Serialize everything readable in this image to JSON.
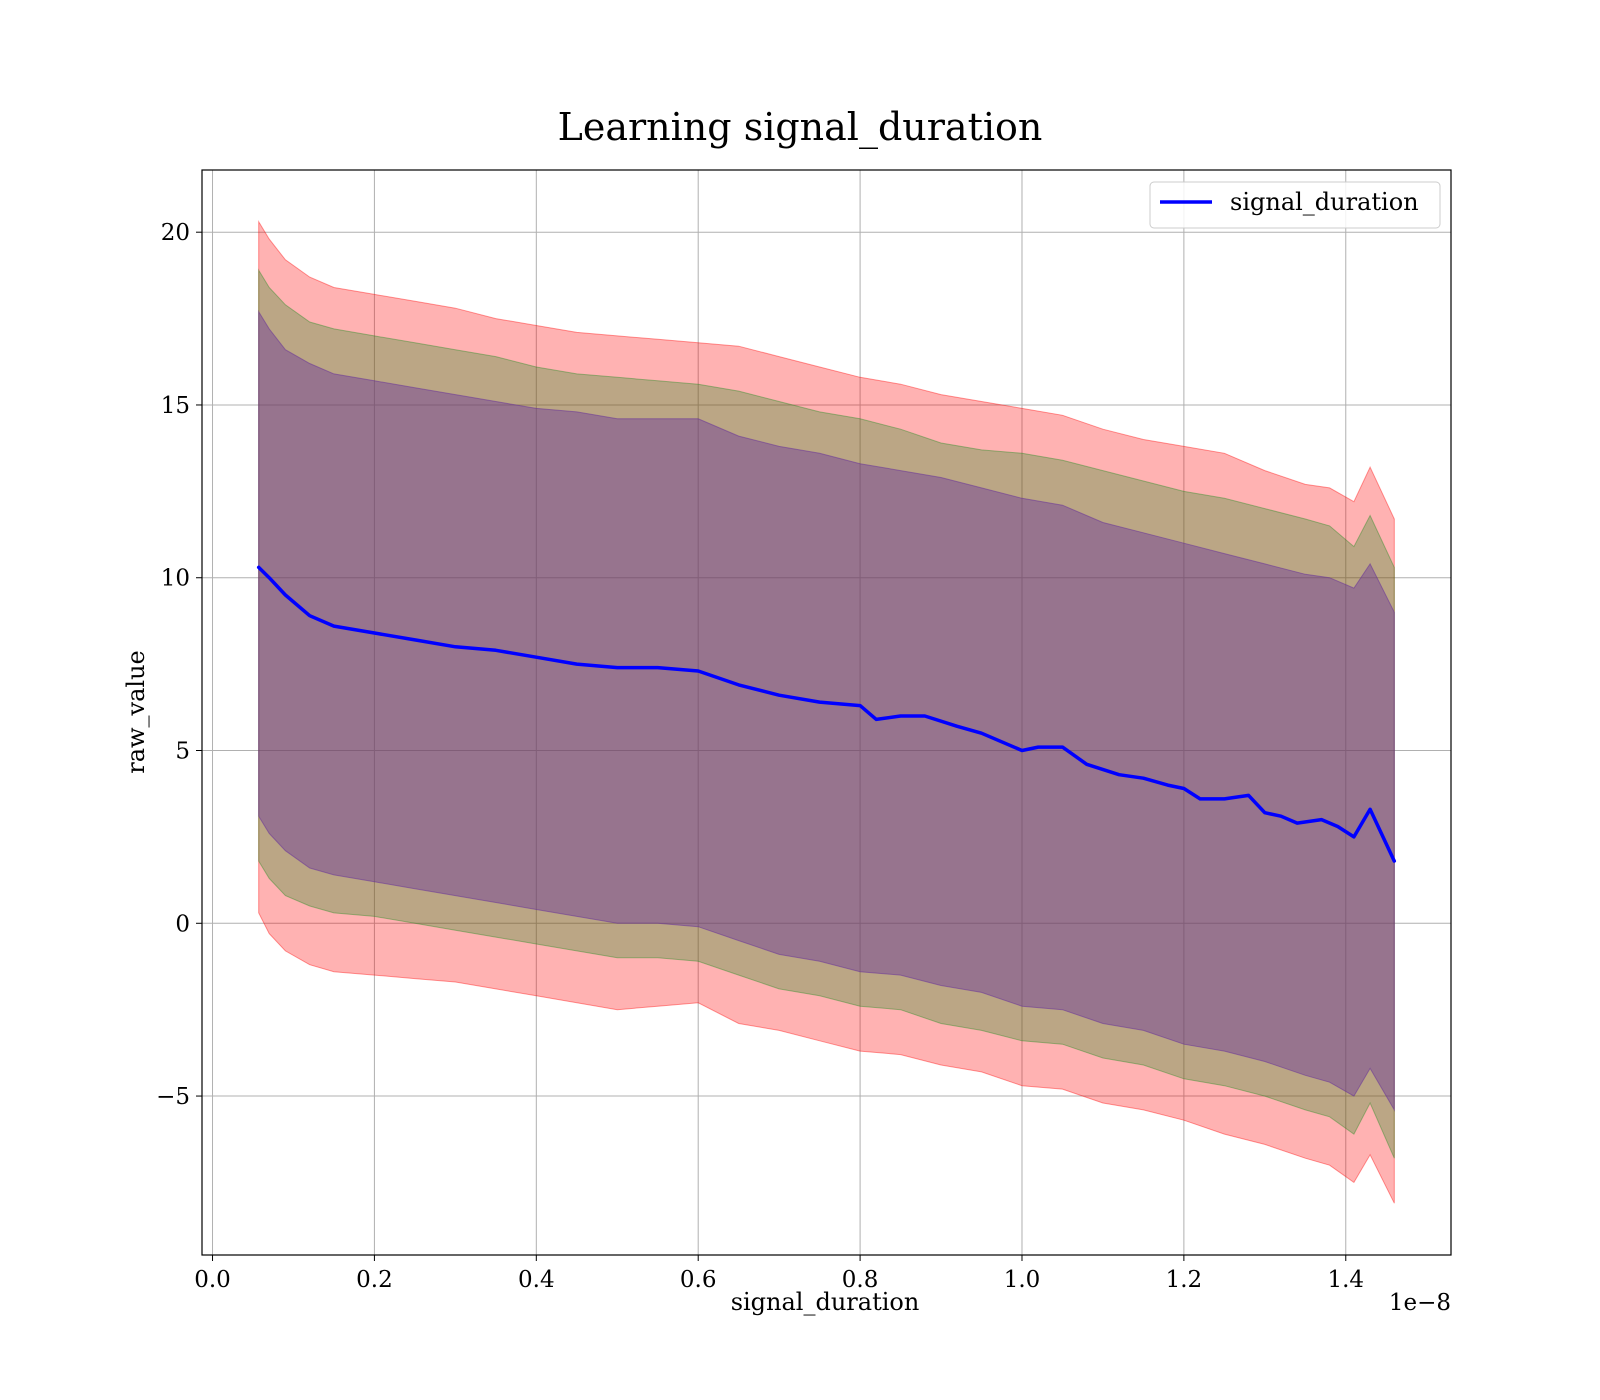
{
  "chart_data": {
    "type": "line",
    "title": "Learning signal_duration",
    "xlabel": "signal_duration",
    "ylabel": "raw_value",
    "x_offset_label": "1e−8",
    "xlim": [
      -0.013,
      1.53
    ],
    "ylim": [
      -9.6,
      21.8
    ],
    "x_ticks": [
      0.0,
      0.2,
      0.4,
      0.6,
      0.8,
      1.0,
      1.2,
      1.4
    ],
    "x_tick_labels": [
      "0.0",
      "0.2",
      "0.4",
      "0.6",
      "0.8",
      "1.0",
      "1.2",
      "1.4"
    ],
    "y_ticks": [
      -5,
      0,
      5,
      10,
      15,
      20
    ],
    "y_tick_labels": [
      "−5",
      "0",
      "5",
      "10",
      "15",
      "20"
    ],
    "grid": true,
    "legend_position": "top-right",
    "series": [
      {
        "name": "signal_duration",
        "color": "#0000ff",
        "x": [
          0.057,
          0.07,
          0.09,
          0.12,
          0.15,
          0.2,
          0.25,
          0.3,
          0.35,
          0.4,
          0.45,
          0.5,
          0.55,
          0.6,
          0.65,
          0.7,
          0.75,
          0.8,
          0.82,
          0.85,
          0.88,
          0.92,
          0.95,
          1.0,
          1.02,
          1.05,
          1.08,
          1.12,
          1.15,
          1.18,
          1.2,
          1.22,
          1.25,
          1.28,
          1.3,
          1.32,
          1.34,
          1.37,
          1.39,
          1.41,
          1.43,
          1.46
        ],
        "values": [
          10.3,
          10.0,
          9.5,
          8.9,
          8.6,
          8.4,
          8.2,
          8.0,
          7.9,
          7.7,
          7.5,
          7.4,
          7.4,
          7.3,
          6.9,
          6.6,
          6.4,
          6.3,
          5.9,
          6.0,
          6.0,
          5.7,
          5.5,
          5.0,
          5.1,
          5.1,
          4.6,
          4.3,
          4.2,
          4.0,
          3.9,
          3.6,
          3.6,
          3.7,
          3.2,
          3.1,
          2.9,
          3.0,
          2.8,
          2.5,
          3.3,
          1.8
        ]
      }
    ],
    "bands": [
      {
        "color": "#ff0000",
        "opacity": 0.3,
        "x": [
          0.057,
          0.07,
          0.09,
          0.12,
          0.15,
          0.2,
          0.25,
          0.3,
          0.35,
          0.4,
          0.45,
          0.5,
          0.55,
          0.6,
          0.65,
          0.7,
          0.75,
          0.8,
          0.85,
          0.9,
          0.95,
          1.0,
          1.05,
          1.1,
          1.15,
          1.2,
          1.25,
          1.3,
          1.35,
          1.38,
          1.41,
          1.43,
          1.46
        ],
        "upper": [
          20.3,
          19.8,
          19.2,
          18.7,
          18.4,
          18.2,
          18.0,
          17.8,
          17.5,
          17.3,
          17.1,
          17.0,
          16.9,
          16.8,
          16.7,
          16.4,
          16.1,
          15.8,
          15.6,
          15.3,
          15.1,
          14.9,
          14.7,
          14.3,
          14.0,
          13.8,
          13.6,
          13.1,
          12.7,
          12.6,
          12.2,
          13.2,
          11.7
        ],
        "lower": [
          0.3,
          -0.3,
          -0.8,
          -1.2,
          -1.4,
          -1.5,
          -1.6,
          -1.7,
          -1.9,
          -2.1,
          -2.3,
          -2.5,
          -2.4,
          -2.3,
          -2.9,
          -3.1,
          -3.4,
          -3.7,
          -3.8,
          -4.1,
          -4.3,
          -4.7,
          -4.8,
          -5.2,
          -5.4,
          -5.7,
          -6.1,
          -6.4,
          -6.8,
          -7.0,
          -7.5,
          -6.7,
          -8.1
        ]
      },
      {
        "color": "#1e8c1e",
        "opacity": 0.3,
        "x": [
          0.057,
          0.07,
          0.09,
          0.12,
          0.15,
          0.2,
          0.25,
          0.3,
          0.35,
          0.4,
          0.45,
          0.5,
          0.55,
          0.6,
          0.65,
          0.7,
          0.75,
          0.8,
          0.85,
          0.9,
          0.95,
          1.0,
          1.05,
          1.1,
          1.15,
          1.2,
          1.25,
          1.3,
          1.35,
          1.38,
          1.41,
          1.43,
          1.46
        ],
        "upper": [
          18.9,
          18.4,
          17.9,
          17.4,
          17.2,
          17.0,
          16.8,
          16.6,
          16.4,
          16.1,
          15.9,
          15.8,
          15.7,
          15.6,
          15.4,
          15.1,
          14.8,
          14.6,
          14.3,
          13.9,
          13.7,
          13.6,
          13.4,
          13.1,
          12.8,
          12.5,
          12.3,
          12.0,
          11.7,
          11.5,
          10.9,
          11.8,
          10.3
        ],
        "lower": [
          1.8,
          1.3,
          0.8,
          0.5,
          0.3,
          0.2,
          0.0,
          -0.2,
          -0.4,
          -0.6,
          -0.8,
          -1.0,
          -1.0,
          -1.1,
          -1.5,
          -1.9,
          -2.1,
          -2.4,
          -2.5,
          -2.9,
          -3.1,
          -3.4,
          -3.5,
          -3.9,
          -4.1,
          -4.5,
          -4.7,
          -5.0,
          -5.4,
          -5.6,
          -6.1,
          -5.2,
          -6.8
        ]
      },
      {
        "color": "#662f9a",
        "opacity": 0.42,
        "x": [
          0.057,
          0.07,
          0.09,
          0.12,
          0.15,
          0.2,
          0.25,
          0.3,
          0.35,
          0.4,
          0.45,
          0.5,
          0.55,
          0.6,
          0.65,
          0.7,
          0.75,
          0.8,
          0.85,
          0.9,
          0.95,
          1.0,
          1.05,
          1.1,
          1.15,
          1.2,
          1.25,
          1.3,
          1.35,
          1.38,
          1.41,
          1.43,
          1.46
        ],
        "upper": [
          17.7,
          17.2,
          16.6,
          16.2,
          15.9,
          15.7,
          15.5,
          15.3,
          15.1,
          14.9,
          14.8,
          14.6,
          14.6,
          14.6,
          14.1,
          13.8,
          13.6,
          13.3,
          13.1,
          12.9,
          12.6,
          12.3,
          12.1,
          11.6,
          11.3,
          11.0,
          10.7,
          10.4,
          10.1,
          10.0,
          9.7,
          10.4,
          9.0
        ],
        "lower": [
          3.1,
          2.6,
          2.1,
          1.6,
          1.4,
          1.2,
          1.0,
          0.8,
          0.6,
          0.4,
          0.2,
          0.0,
          0.0,
          -0.1,
          -0.5,
          -0.9,
          -1.1,
          -1.4,
          -1.5,
          -1.8,
          -2.0,
          -2.4,
          -2.5,
          -2.9,
          -3.1,
          -3.5,
          -3.7,
          -4.0,
          -4.4,
          -4.6,
          -5.0,
          -4.2,
          -5.4
        ]
      }
    ]
  }
}
